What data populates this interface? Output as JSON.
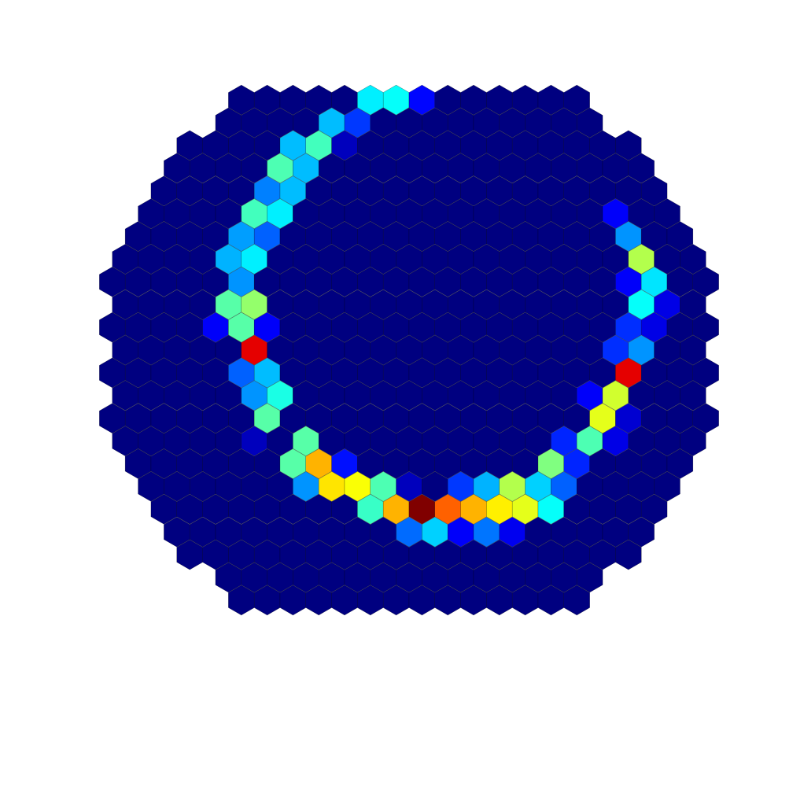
{
  "chart_data": {
    "type": "heatmap",
    "layout": "hexagonal",
    "title": "",
    "xlabel": "",
    "ylabel": "",
    "axes_visible": false,
    "grid": false,
    "legend": "none",
    "colormap": "jet",
    "value_range": [
      0,
      1
    ],
    "background_value": 0.0,
    "hex_orientation": "pointy-top",
    "hex_rows": {
      "row_min": -11,
      "row_max": 11,
      "col_even_min": -11,
      "col_even_max": 11,
      "col_odd_min": -11.5,
      "col_odd_max": 11.5,
      "radius_limit": 11.9
    },
    "cells": [
      {
        "row": -11,
        "col": -1.5,
        "v": 0.36
      },
      {
        "row": -11,
        "col": -0.5,
        "v": 0.38
      },
      {
        "row": -11,
        "col": 0.5,
        "v": 0.13
      },
      {
        "row": -10,
        "col": -3,
        "v": 0.31
      },
      {
        "row": -10,
        "col": -2,
        "v": 0.18
      },
      {
        "row": -9,
        "col": -4.5,
        "v": 0.31
      },
      {
        "row": -9,
        "col": -3.5,
        "v": 0.44
      },
      {
        "row": -9,
        "col": -2.5,
        "v": 0.06
      },
      {
        "row": -8,
        "col": -5,
        "v": 0.45
      },
      {
        "row": -8,
        "col": -4,
        "v": 0.31
      },
      {
        "row": -7,
        "col": -5.5,
        "v": 0.25
      },
      {
        "row": -7,
        "col": -4.5,
        "v": 0.31
      },
      {
        "row": -6,
        "col": -6,
        "v": 0.44
      },
      {
        "row": -6,
        "col": -5,
        "v": 0.36
      },
      {
        "row": -6,
        "col": 8,
        "v": 0.12
      },
      {
        "row": -5,
        "col": -6.5,
        "v": 0.28
      },
      {
        "row": -5,
        "col": -5.5,
        "v": 0.22
      },
      {
        "row": -5,
        "col": 8.5,
        "v": 0.27
      },
      {
        "row": -4,
        "col": -7,
        "v": 0.3
      },
      {
        "row": -4,
        "col": -6,
        "v": 0.36
      },
      {
        "row": -4,
        "col": 9,
        "v": 0.55
      },
      {
        "row": -3,
        "col": -6.5,
        "v": 0.27
      },
      {
        "row": -3,
        "col": 8.5,
        "v": 0.12
      },
      {
        "row": -3,
        "col": 9.5,
        "v": 0.35
      },
      {
        "row": -2,
        "col": -7,
        "v": 0.46
      },
      {
        "row": -2,
        "col": -6,
        "v": 0.52
      },
      {
        "row": -2,
        "col": 9,
        "v": 0.38
      },
      {
        "row": -2,
        "col": 10,
        "v": 0.1
      },
      {
        "row": -1,
        "col": -7.5,
        "v": 0.12
      },
      {
        "row": -1,
        "col": -6.5,
        "v": 0.46
      },
      {
        "row": -1,
        "col": -5.5,
        "v": 0.12
      },
      {
        "row": -1,
        "col": 8.5,
        "v": 0.17
      },
      {
        "row": -1,
        "col": 9.5,
        "v": 0.1
      },
      {
        "row": 0,
        "col": -6,
        "v": 0.9
      },
      {
        "row": 0,
        "col": 8,
        "v": 0.17
      },
      {
        "row": 0,
        "col": 9,
        "v": 0.27
      },
      {
        "row": 1,
        "col": -6.5,
        "v": 0.22
      },
      {
        "row": 1,
        "col": -5.5,
        "v": 0.31
      },
      {
        "row": 1,
        "col": 8.5,
        "v": 0.9
      },
      {
        "row": 2,
        "col": -6,
        "v": 0.27
      },
      {
        "row": 2,
        "col": -5,
        "v": 0.4
      },
      {
        "row": 2,
        "col": 7,
        "v": 0.12
      },
      {
        "row": 2,
        "col": 8,
        "v": 0.58
      },
      {
        "row": 3,
        "col": -5.5,
        "v": 0.46
      },
      {
        "row": 3,
        "col": 7.5,
        "v": 0.6
      },
      {
        "row": 3,
        "col": 8.5,
        "v": 0.08
      },
      {
        "row": 4,
        "col": -6,
        "v": 0.06
      },
      {
        "row": 4,
        "col": 7,
        "v": 0.45
      },
      {
        "row": 4,
        "col": 8,
        "v": 0.1
      },
      {
        "row": 4,
        "col": -4,
        "v": 0.46
      },
      {
        "row": 4,
        "col": 6,
        "v": 0.16
      },
      {
        "row": 5,
        "col": -4.5,
        "v": 0.46
      },
      {
        "row": 5,
        "col": -3.5,
        "v": 0.7
      },
      {
        "row": 5,
        "col": -2.5,
        "v": 0.14
      },
      {
        "row": 5,
        "col": 5.5,
        "v": 0.5
      },
      {
        "row": 5,
        "col": 6.5,
        "v": 0.16
      },
      {
        "row": 6,
        "col": -4,
        "v": 0.27
      },
      {
        "row": 6,
        "col": -3,
        "v": 0.65
      },
      {
        "row": 6,
        "col": -2,
        "v": 0.62
      },
      {
        "row": 6,
        "col": -1,
        "v": 0.45
      },
      {
        "row": 6,
        "col": 0,
        "v": 0.06
      },
      {
        "row": 6,
        "col": 2,
        "v": 0.18
      },
      {
        "row": 6,
        "col": 3,
        "v": 0.3
      },
      {
        "row": 6,
        "col": 4,
        "v": 0.55
      },
      {
        "row": 6,
        "col": 5,
        "v": 0.33
      },
      {
        "row": 6,
        "col": 6,
        "v": 0.22
      },
      {
        "row": 7,
        "col": -1.5,
        "v": 0.43
      },
      {
        "row": 7,
        "col": -0.5,
        "v": 0.7
      },
      {
        "row": 7,
        "col": 0.5,
        "v": 1.0
      },
      {
        "row": 7,
        "col": 1.5,
        "v": 0.78
      },
      {
        "row": 7,
        "col": 2.5,
        "v": 0.7
      },
      {
        "row": 7,
        "col": 3.5,
        "v": 0.64
      },
      {
        "row": 7,
        "col": 4.5,
        "v": 0.6
      },
      {
        "row": 7,
        "col": 5.5,
        "v": 0.38
      },
      {
        "row": 8,
        "col": 0,
        "v": 0.23
      },
      {
        "row": 8,
        "col": 1,
        "v": 0.33
      },
      {
        "row": 8,
        "col": 2,
        "v": 0.12
      },
      {
        "row": 8,
        "col": 3,
        "v": 0.24
      },
      {
        "row": 8,
        "col": 4,
        "v": 0.11
      }
    ]
  }
}
